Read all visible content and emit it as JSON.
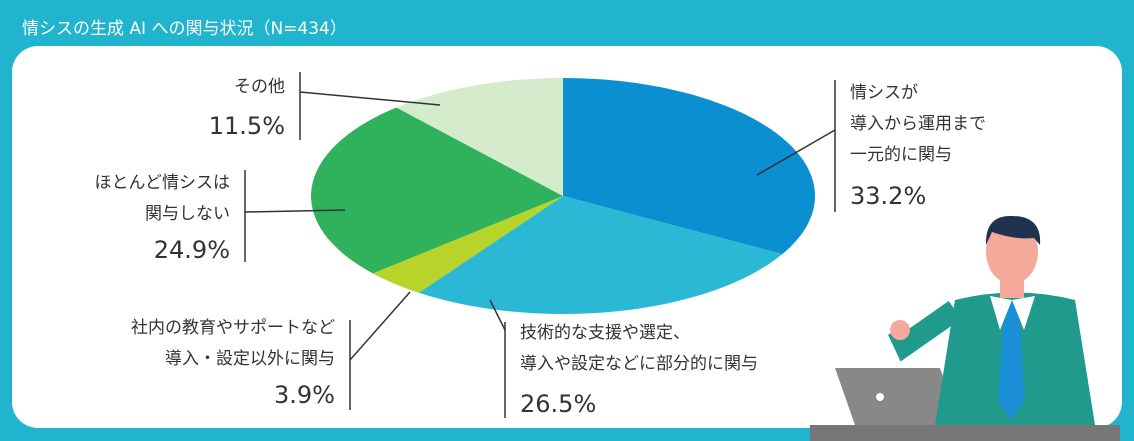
{
  "chart_data": {
    "type": "pie",
    "title": "情シスの生成 AI への関与状況（N=434）",
    "categories": [
      "情シスが\n導入から運用まで\n一元的に関与",
      "技術的な支援や選定、\n導入や設定などに部分的に関与",
      "社内の教育やサポートなど\n導入・設定以外に関与",
      "ほとんど情シスは\n関与しない",
      "その他"
    ],
    "values": [
      33.2,
      26.5,
      3.9,
      24.9,
      11.5
    ],
    "value_labels": [
      "33.2%",
      "26.5%",
      "3.9%",
      "24.9%",
      "11.5%"
    ],
    "colors": [
      "#0a8fd0",
      "#2ab8d4",
      "#b8d42a",
      "#30b25c",
      "#d4ebcc"
    ]
  }
}
